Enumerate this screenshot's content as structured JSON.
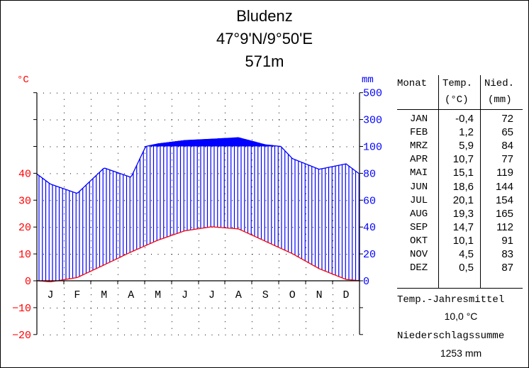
{
  "header": {
    "station": "Bludenz",
    "coordinates": "47°9'N/9°50'E",
    "elevation": "571m"
  },
  "axes": {
    "left_unit": "°C",
    "right_unit": "mm",
    "left_ticks": [
      "40",
      "30",
      "20",
      "10",
      "0",
      "−10",
      "−20"
    ],
    "right_ticks": [
      "500",
      "300",
      "100",
      "80",
      "60",
      "40",
      "20",
      "0"
    ],
    "month_letters": [
      "J",
      "F",
      "M",
      "A",
      "M",
      "J",
      "J",
      "A",
      "S",
      "O",
      "N",
      "D"
    ]
  },
  "table": {
    "col_month": "Monat",
    "col_temp": "Temp.",
    "col_temp_unit": "(°C)",
    "col_prec": "Nied.",
    "col_prec_unit": "(mm)",
    "rows": [
      {
        "month": "JAN",
        "temp": "-0,4",
        "prec": "72"
      },
      {
        "month": "FEB",
        "temp": "1,2",
        "prec": "65"
      },
      {
        "month": "MRZ",
        "temp": "5,9",
        "prec": "84"
      },
      {
        "month": "APR",
        "temp": "10,7",
        "prec": "77"
      },
      {
        "month": "MAI",
        "temp": "15,1",
        "prec": "119"
      },
      {
        "month": "JUN",
        "temp": "18,6",
        "prec": "144"
      },
      {
        "month": "JUL",
        "temp": "20,1",
        "prec": "154"
      },
      {
        "month": "AUG",
        "temp": "19,3",
        "prec": "165"
      },
      {
        "month": "SEP",
        "temp": "14,7",
        "prec": "112"
      },
      {
        "month": "OKT",
        "temp": "10,1",
        "prec": "91"
      },
      {
        "month": "NOV",
        "temp": "4,5",
        "prec": "83"
      },
      {
        "month": "DEZ",
        "temp": "0,5",
        "prec": "87"
      }
    ]
  },
  "summary": {
    "temp_label": "Temp.-Jahresmittel",
    "temp_value": "10,0 °C",
    "prec_label": "Niederschlagssumme",
    "prec_value": "1253 mm"
  },
  "colors": {
    "temperature": "#ff0000",
    "precipitation": "#0000ff",
    "axis": "#000000"
  },
  "chart_data": {
    "type": "line",
    "title": "Bludenz 47°9'N/9°50'E 571m",
    "categories": [
      "J",
      "F",
      "M",
      "A",
      "M",
      "J",
      "J",
      "A",
      "S",
      "O",
      "N",
      "D"
    ],
    "series": [
      {
        "name": "Temperatur (°C)",
        "axis": "left",
        "values": [
          -0.4,
          1.2,
          5.9,
          10.7,
          15.1,
          18.6,
          20.1,
          19.3,
          14.7,
          10.1,
          4.5,
          0.5
        ]
      },
      {
        "name": "Niederschlag (mm)",
        "axis": "right",
        "values": [
          72,
          65,
          84,
          77,
          119,
          144,
          154,
          165,
          112,
          91,
          83,
          87
        ]
      }
    ],
    "xlabel": "",
    "ylabel_left": "°C",
    "ylabel_right": "mm",
    "ylim_left": [
      -20,
      40
    ],
    "ylim_right": [
      0,
      500
    ],
    "right_axis_note": "linear 0–100 (20 mm = 10 °C), compressed above 100 mm (200 mm per 10 °C step)",
    "grid": true,
    "legend": "none",
    "annual_mean_temp": 10.0,
    "annual_precip_sum": 1253
  }
}
